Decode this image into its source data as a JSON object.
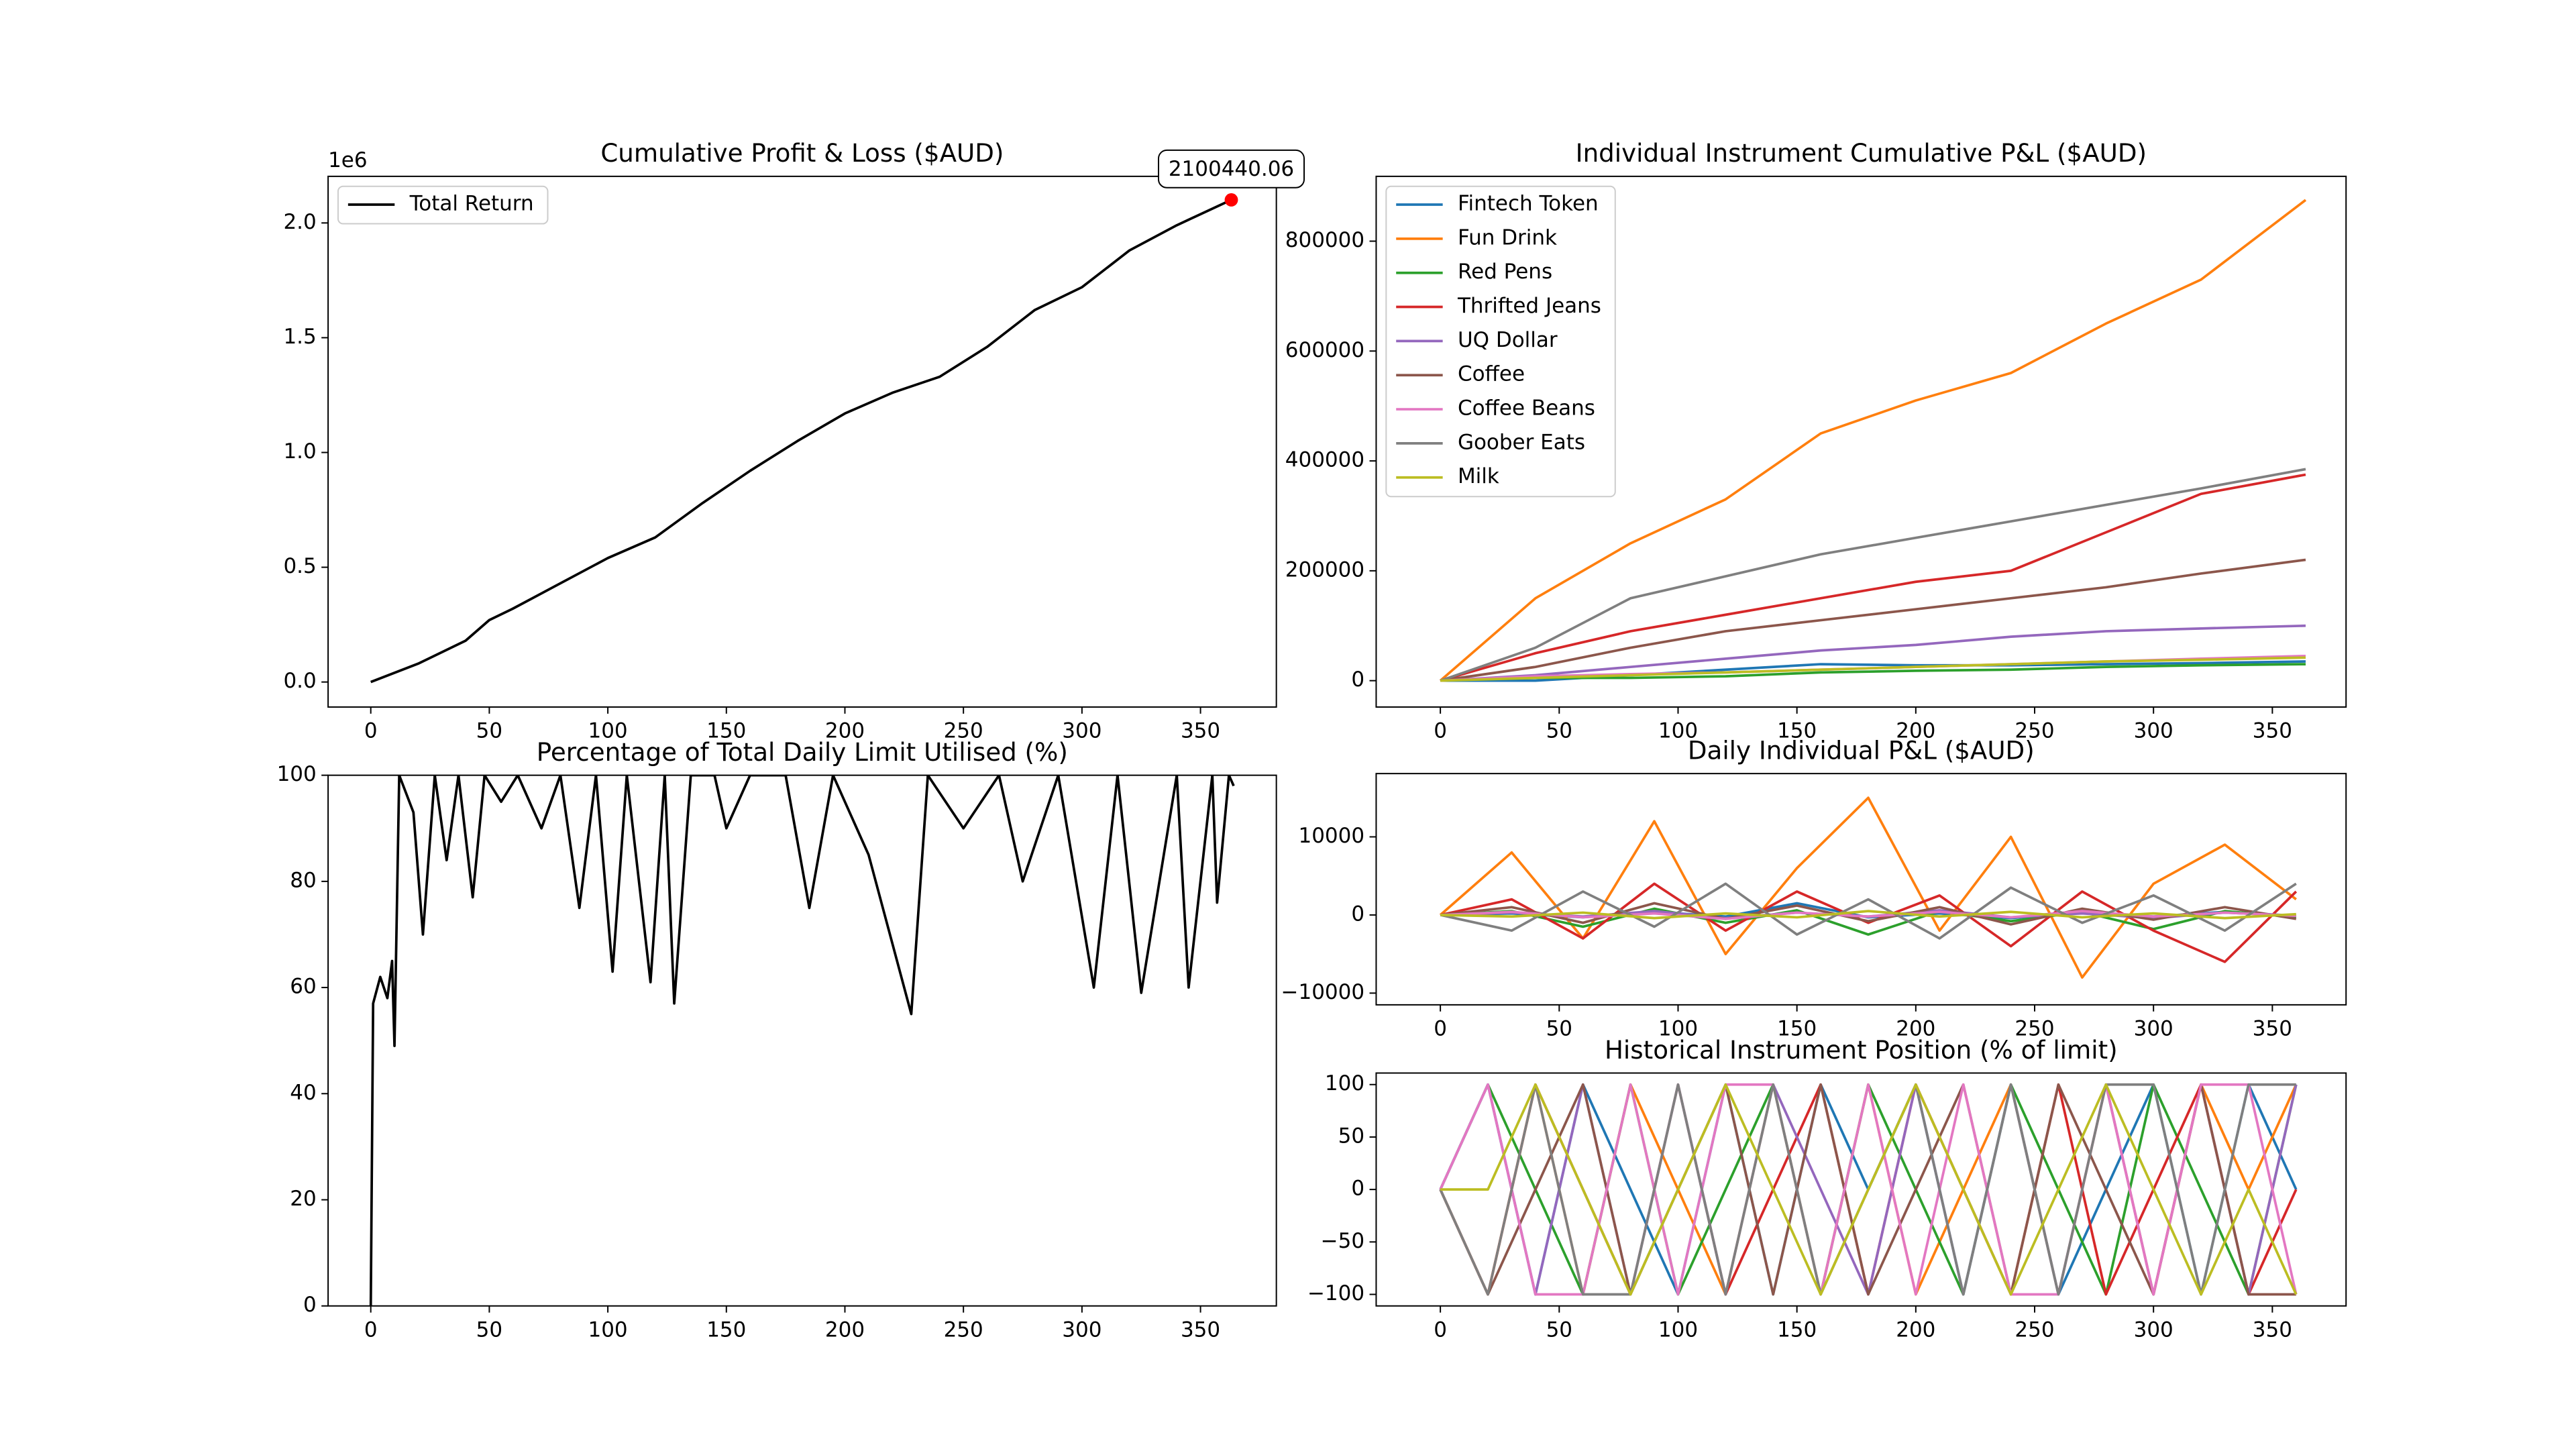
{
  "chart_data": [
    {
      "type": "line",
      "title": "Cumulative Profit & Loss ($AUD)",
      "y_offset_label": "1e6",
      "x": [
        0,
        20,
        40,
        50,
        60,
        80,
        100,
        120,
        140,
        160,
        180,
        200,
        220,
        240,
        260,
        280,
        300,
        320,
        340,
        363
      ],
      "series": [
        {
          "name": "Total Return",
          "color": "#000000",
          "values": [
            0,
            80000,
            180000,
            270000,
            320000,
            430000,
            540000,
            630000,
            780000,
            920000,
            1050000,
            1170000,
            1260000,
            1330000,
            1460000,
            1620000,
            1720000,
            1880000,
            1990000,
            2100440.06
          ]
        }
      ],
      "annotation": {
        "x": 363,
        "value": 2100440.06,
        "color": "#ff0000"
      },
      "legend": "upper left",
      "xlim": [
        -18,
        382
      ],
      "xticks": [
        0,
        50,
        100,
        150,
        200,
        250,
        300,
        350
      ],
      "ylim": [
        -109000,
        2203000
      ],
      "yticks": [
        {
          "value": 0,
          "label": "0.0"
        },
        {
          "value": 500000,
          "label": "0.5"
        },
        {
          "value": 1000000,
          "label": "1.0"
        },
        {
          "value": 1500000,
          "label": "1.5"
        },
        {
          "value": 2000000,
          "label": "2.0"
        }
      ]
    },
    {
      "type": "line",
      "title": "Individual Instrument Cumulative P&L ($AUD)",
      "x": [
        0,
        40,
        80,
        120,
        160,
        200,
        240,
        280,
        320,
        364
      ],
      "series": [
        {
          "name": "Fintech Token",
          "color": "#1f77b4",
          "values": [
            0,
            0,
            10000,
            20000,
            30000,
            28000,
            28000,
            30000,
            32000,
            35000
          ]
        },
        {
          "name": "Fun Drink",
          "color": "#ff7f0e",
          "values": [
            0,
            150000,
            250000,
            330000,
            450000,
            510000,
            560000,
            650000,
            730000,
            875000
          ]
        },
        {
          "name": "Red Pens",
          "color": "#2ca02c",
          "values": [
            0,
            5000,
            5000,
            8000,
            15000,
            18000,
            20000,
            25000,
            28000,
            30000
          ]
        },
        {
          "name": "Thrifted Jeans",
          "color": "#d62728",
          "values": [
            0,
            50000,
            90000,
            120000,
            150000,
            180000,
            200000,
            270000,
            340000,
            375000
          ]
        },
        {
          "name": "UQ Dollar",
          "color": "#9467bd",
          "values": [
            0,
            10000,
            25000,
            40000,
            55000,
            65000,
            80000,
            90000,
            95000,
            100000
          ]
        },
        {
          "name": "Coffee",
          "color": "#8c564b",
          "values": [
            0,
            25000,
            60000,
            90000,
            110000,
            130000,
            150000,
            170000,
            195000,
            220000
          ]
        },
        {
          "name": "Coffee Beans",
          "color": "#e377c2",
          "values": [
            0,
            8000,
            12000,
            15000,
            20000,
            25000,
            30000,
            35000,
            40000,
            45000
          ]
        },
        {
          "name": "Goober Eats",
          "color": "#7f7f7f",
          "values": [
            0,
            60000,
            150000,
            190000,
            230000,
            260000,
            290000,
            320000,
            350000,
            385000
          ]
        },
        {
          "name": "Milk",
          "color": "#bcbd22",
          "values": [
            0,
            5000,
            10000,
            15000,
            20000,
            25000,
            30000,
            35000,
            38000,
            42000
          ]
        }
      ],
      "legend": "upper left",
      "xlim": [
        -27,
        381
      ],
      "xticks": [
        0,
        50,
        100,
        150,
        200,
        250,
        300,
        350
      ],
      "ylim": [
        -48000,
        918000
      ],
      "yticks": [
        0,
        200000,
        400000,
        600000,
        800000
      ]
    },
    {
      "type": "line",
      "title": "Percentage of Total Daily Limit Utilised (%)",
      "x": [
        0,
        1,
        4,
        7,
        9,
        10,
        12,
        18,
        22,
        27,
        32,
        37,
        43,
        48,
        55,
        62,
        72,
        80,
        88,
        95,
        102,
        108,
        118,
        124,
        128,
        135,
        145,
        150,
        160,
        175,
        185,
        195,
        210,
        228,
        235,
        250,
        265,
        275,
        290,
        305,
        315,
        325,
        340,
        345,
        355,
        357,
        362,
        364
      ],
      "series": [
        {
          "color": "#000000",
          "values": [
            0,
            57,
            62,
            58,
            65,
            49,
            100,
            93,
            70,
            100,
            84,
            100,
            77,
            100,
            95,
            100,
            90,
            100,
            75,
            100,
            63,
            100,
            61,
            100,
            57,
            100,
            100,
            90,
            100,
            100,
            75,
            100,
            85,
            55,
            100,
            90,
            100,
            80,
            100,
            60,
            100,
            59,
            100,
            60,
            100,
            76,
            100,
            98
          ]
        }
      ],
      "xlim": [
        -18,
        382
      ],
      "xticks": [
        0,
        50,
        100,
        150,
        200,
        250,
        300,
        350
      ],
      "ylim": [
        0,
        100
      ],
      "yticks": [
        0,
        20,
        40,
        60,
        80,
        100
      ]
    },
    {
      "type": "line",
      "title": "Daily Individual P&L ($AUD)",
      "x": [
        0,
        30,
        60,
        90,
        120,
        150,
        180,
        210,
        240,
        270,
        300,
        330,
        360
      ],
      "series": [
        {
          "color": "#1f77b4",
          "values": [
            0,
            200,
            -300,
            400,
            -200,
            1500,
            -300,
            200,
            -400,
            300,
            -200,
            400,
            -100
          ]
        },
        {
          "color": "#ff7f0e",
          "values": [
            0,
            8000,
            -3000,
            12000,
            -5000,
            6000,
            15000,
            -2000,
            10000,
            -8000,
            4000,
            9000,
            2000
          ]
        },
        {
          "color": "#2ca02c",
          "values": [
            0,
            500,
            -1500,
            800,
            -1000,
            600,
            -2500,
            500,
            -800,
            400,
            -1800,
            500,
            -300
          ]
        },
        {
          "color": "#d62728",
          "values": [
            0,
            2000,
            -3000,
            4000,
            -2000,
            3000,
            -1000,
            2500,
            -4000,
            3000,
            -2000,
            -6000,
            3000
          ]
        },
        {
          "color": "#9467bd",
          "values": [
            0,
            300,
            -200,
            500,
            -400,
            300,
            -200,
            600,
            -300,
            200,
            -400,
            300,
            -100
          ]
        },
        {
          "color": "#8c564b",
          "values": [
            0,
            1000,
            -1000,
            1500,
            -500,
            1200,
            -800,
            1000,
            -1200,
            800,
            -600,
            1000,
            -500
          ]
        },
        {
          "color": "#e377c2",
          "values": [
            0,
            400,
            -300,
            200,
            -500,
            300,
            -200,
            400,
            -300,
            500,
            -200,
            300,
            -100
          ]
        },
        {
          "color": "#7f7f7f",
          "values": [
            0,
            -2000,
            3000,
            -1500,
            4000,
            -2500,
            2000,
            -3000,
            3500,
            -1000,
            2500,
            -2000,
            4000
          ]
        },
        {
          "color": "#bcbd22",
          "values": [
            0,
            -200,
            300,
            -400,
            200,
            -300,
            500,
            -200,
            400,
            -300,
            200,
            -400,
            100
          ]
        }
      ],
      "xlim": [
        -27,
        381
      ],
      "xticks": [
        0,
        50,
        100,
        150,
        200,
        250,
        300,
        350
      ],
      "ylim": [
        -11500,
        18100
      ],
      "yticks": [
        {
          "value": -10000,
          "label": "−10000"
        },
        0,
        10000
      ]
    },
    {
      "type": "line",
      "title": "Historical Instrument Position (% of limit)",
      "x": [
        0,
        20,
        40,
        60,
        80,
        100,
        120,
        140,
        160,
        180,
        200,
        220,
        240,
        260,
        280,
        300,
        320,
        340,
        360
      ],
      "series": [
        {
          "color": "#1f77b4",
          "values": [
            0,
            100,
            -100,
            100,
            0,
            -100,
            100,
            -100,
            100,
            0,
            100,
            -100,
            100,
            -100,
            0,
            100,
            -100,
            100,
            0
          ]
        },
        {
          "color": "#ff7f0e",
          "values": [
            0,
            -100,
            100,
            -100,
            100,
            0,
            -100,
            100,
            -100,
            100,
            -100,
            0,
            100,
            -100,
            100,
            -100,
            100,
            0,
            100
          ]
        },
        {
          "color": "#2ca02c",
          "values": [
            0,
            100,
            0,
            -100,
            100,
            -100,
            0,
            100,
            -100,
            100,
            0,
            -100,
            100,
            0,
            -100,
            100,
            0,
            -100,
            100
          ]
        },
        {
          "color": "#d62728",
          "values": [
            0,
            -100,
            100,
            0,
            -100,
            100,
            -100,
            0,
            100,
            -100,
            100,
            0,
            -100,
            100,
            -100,
            0,
            100,
            -100,
            0
          ]
        },
        {
          "color": "#9467bd",
          "values": [
            0,
            100,
            -100,
            100,
            -100,
            100,
            -100,
            100,
            0,
            -100,
            100,
            -100,
            100,
            -100,
            100,
            -100,
            100,
            -100,
            100
          ]
        },
        {
          "color": "#8c564b",
          "values": [
            0,
            -100,
            0,
            100,
            -100,
            0,
            100,
            -100,
            100,
            -100,
            0,
            100,
            -100,
            100,
            0,
            -100,
            100,
            -100,
            -100
          ]
        },
        {
          "color": "#e377c2",
          "values": [
            0,
            100,
            -100,
            -100,
            100,
            -100,
            100,
            100,
            -100,
            100,
            -100,
            100,
            -100,
            -100,
            100,
            -100,
            100,
            100,
            -100
          ]
        },
        {
          "color": "#7f7f7f",
          "values": [
            0,
            -100,
            100,
            -100,
            -100,
            100,
            -100,
            100,
            -100,
            0,
            100,
            -100,
            100,
            -100,
            100,
            100,
            -100,
            100,
            100
          ]
        },
        {
          "color": "#bcbd22",
          "values": [
            0,
            0,
            100,
            0,
            -100,
            0,
            100,
            0,
            -100,
            0,
            100,
            0,
            -100,
            0,
            100,
            0,
            -100,
            0,
            -100
          ]
        }
      ],
      "xlim": [
        -27,
        381
      ],
      "xticks": [
        0,
        50,
        100,
        150,
        200,
        250,
        300,
        350
      ],
      "ylim": [
        -111,
        111
      ],
      "yticks": [
        {
          "value": -100,
          "label": "−100"
        },
        {
          "value": -50,
          "label": "−50"
        },
        0,
        50,
        100
      ]
    }
  ]
}
